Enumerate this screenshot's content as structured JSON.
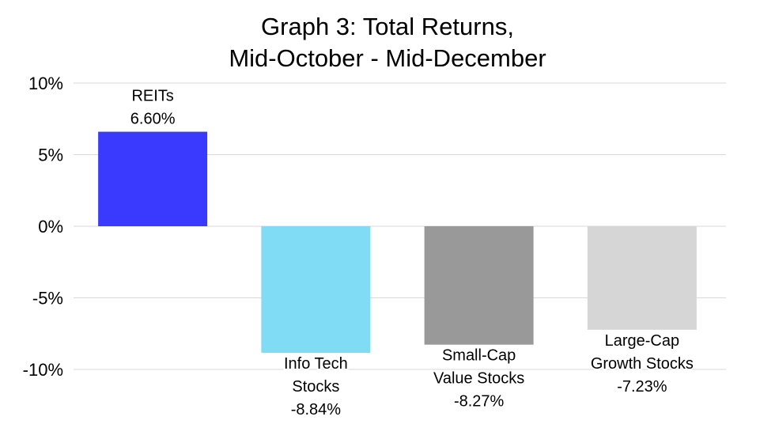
{
  "chart_data": {
    "type": "bar",
    "title": [
      "Graph 3: Total Returns,",
      "Mid-October - Mid-December"
    ],
    "xlabel": "",
    "ylabel": "",
    "ylim": [
      -10,
      10
    ],
    "yticks": [
      10,
      5,
      0,
      -5,
      -10
    ],
    "ytick_labels": [
      "10%",
      "5%",
      "0%",
      "-5%",
      "-10%"
    ],
    "grid": true,
    "categories": [
      [
        "REITs"
      ],
      [
        "Info Tech",
        "Stocks"
      ],
      [
        "Small-Cap",
        "Value Stocks"
      ],
      [
        "Large-Cap",
        "Growth Stocks"
      ]
    ],
    "values": [
      6.6,
      -8.84,
      -8.27,
      -7.23
    ],
    "value_labels": [
      "6.60%",
      "-8.84%",
      "-8.27%",
      "-7.23%"
    ],
    "colors": [
      "#3a3afe",
      "#80dcf5",
      "#999999",
      "#d6d6d6"
    ]
  }
}
